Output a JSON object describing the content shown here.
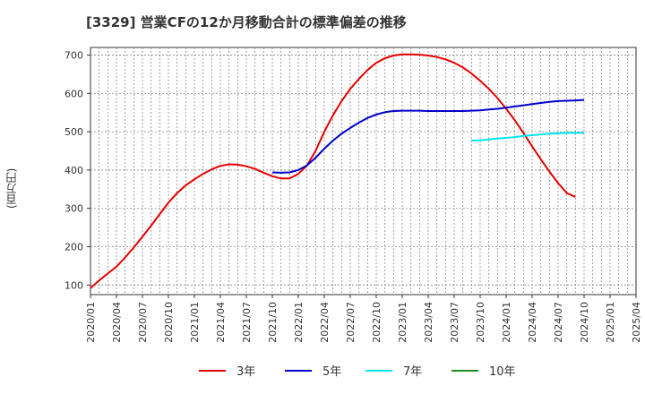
{
  "chart_data": {
    "type": "line",
    "title": "[3329]  営業CFの12か月移動合計の標準偏差の推移",
    "ylabel": "(百万円)",
    "xlabel": "",
    "ylim": [
      75,
      720
    ],
    "yticks": [
      100,
      200,
      300,
      400,
      500,
      600,
      700
    ],
    "xticks": [
      "2020/01",
      "2020/04",
      "2020/07",
      "2020/10",
      "2021/01",
      "2021/04",
      "2021/07",
      "2021/10",
      "2022/01",
      "2022/04",
      "2022/07",
      "2022/10",
      "2023/01",
      "2023/04",
      "2023/07",
      "2023/10",
      "2024/01",
      "2024/04",
      "2024/07",
      "2024/10",
      "2025/01",
      "2025/04"
    ],
    "grid": true,
    "legend_position": "bottom",
    "series": [
      {
        "name": "3年",
        "color": "#e60000",
        "points": [
          [
            "2020/01",
            92
          ],
          [
            "2020/02",
            112
          ],
          [
            "2020/03",
            130
          ],
          [
            "2020/04",
            148
          ],
          [
            "2020/05",
            172
          ],
          [
            "2020/06",
            198
          ],
          [
            "2020/07",
            226
          ],
          [
            "2020/08",
            255
          ],
          [
            "2020/09",
            285
          ],
          [
            "2020/10",
            315
          ],
          [
            "2020/11",
            340
          ],
          [
            "2020/12",
            360
          ],
          [
            "2021/01",
            376
          ],
          [
            "2021/02",
            390
          ],
          [
            "2021/03",
            402
          ],
          [
            "2021/04",
            411
          ],
          [
            "2021/05",
            415
          ],
          [
            "2021/06",
            414
          ],
          [
            "2021/07",
            410
          ],
          [
            "2021/08",
            403
          ],
          [
            "2021/09",
            393
          ],
          [
            "2021/10",
            384
          ],
          [
            "2021/11",
            378
          ],
          [
            "2021/12",
            378
          ],
          [
            "2022/01",
            390
          ],
          [
            "2022/02",
            412
          ],
          [
            "2022/03",
            450
          ],
          [
            "2022/04",
            500
          ],
          [
            "2022/05",
            543
          ],
          [
            "2022/06",
            580
          ],
          [
            "2022/07",
            612
          ],
          [
            "2022/08",
            638
          ],
          [
            "2022/09",
            661
          ],
          [
            "2022/10",
            680
          ],
          [
            "2022/11",
            692
          ],
          [
            "2022/12",
            699
          ],
          [
            "2023/01",
            702
          ],
          [
            "2023/02",
            702
          ],
          [
            "2023/03",
            701
          ],
          [
            "2023/04",
            699
          ],
          [
            "2023/05",
            695
          ],
          [
            "2023/06",
            689
          ],
          [
            "2023/07",
            680
          ],
          [
            "2023/08",
            668
          ],
          [
            "2023/09",
            652
          ],
          [
            "2023/10",
            633
          ],
          [
            "2023/11",
            612
          ],
          [
            "2023/12",
            588
          ],
          [
            "2024/01",
            560
          ],
          [
            "2024/02",
            530
          ],
          [
            "2024/03",
            497
          ],
          [
            "2024/04",
            462
          ],
          [
            "2024/05",
            428
          ],
          [
            "2024/06",
            396
          ],
          [
            "2024/07",
            366
          ],
          [
            "2024/08",
            340
          ],
          [
            "2024/09",
            330
          ]
        ]
      },
      {
        "name": "5年",
        "color": "#0000cc",
        "points": [
          [
            "2021/10",
            394
          ],
          [
            "2021/11",
            393
          ],
          [
            "2021/12",
            394
          ],
          [
            "2022/01",
            400
          ],
          [
            "2022/02",
            412
          ],
          [
            "2022/03",
            432
          ],
          [
            "2022/04",
            456
          ],
          [
            "2022/05",
            477
          ],
          [
            "2022/06",
            495
          ],
          [
            "2022/07",
            510
          ],
          [
            "2022/08",
            524
          ],
          [
            "2022/09",
            536
          ],
          [
            "2022/10",
            545
          ],
          [
            "2022/11",
            551
          ],
          [
            "2022/12",
            554
          ],
          [
            "2023/01",
            555
          ],
          [
            "2023/02",
            555
          ],
          [
            "2023/03",
            555
          ],
          [
            "2023/04",
            554
          ],
          [
            "2023/05",
            554
          ],
          [
            "2023/06",
            554
          ],
          [
            "2023/07",
            554
          ],
          [
            "2023/08",
            554
          ],
          [
            "2023/09",
            555
          ],
          [
            "2023/10",
            556
          ],
          [
            "2023/11",
            558
          ],
          [
            "2023/12",
            560
          ],
          [
            "2024/01",
            563
          ],
          [
            "2024/02",
            566
          ],
          [
            "2024/03",
            569
          ],
          [
            "2024/04",
            572
          ],
          [
            "2024/05",
            575
          ],
          [
            "2024/06",
            578
          ],
          [
            "2024/07",
            580
          ],
          [
            "2024/08",
            581
          ],
          [
            "2024/09",
            582
          ],
          [
            "2024/10",
            583
          ]
        ]
      },
      {
        "name": "7年",
        "color": "#00e5ee",
        "points": [
          [
            "2023/09",
            477
          ],
          [
            "2023/10",
            478
          ],
          [
            "2023/11",
            480
          ],
          [
            "2023/12",
            482
          ],
          [
            "2024/01",
            484
          ],
          [
            "2024/02",
            486
          ],
          [
            "2024/03",
            489
          ],
          [
            "2024/04",
            491
          ],
          [
            "2024/05",
            493
          ],
          [
            "2024/06",
            495
          ],
          [
            "2024/07",
            496
          ],
          [
            "2024/08",
            497
          ],
          [
            "2024/09",
            497
          ],
          [
            "2024/10",
            497
          ]
        ]
      },
      {
        "name": "10年",
        "color": "#228b22",
        "points": []
      }
    ]
  }
}
